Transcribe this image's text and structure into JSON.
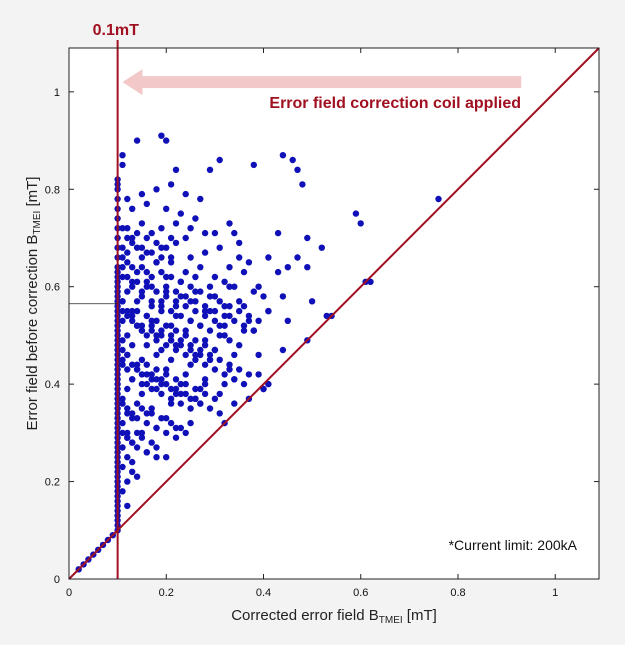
{
  "chart_data": {
    "type": "scatter",
    "title": "",
    "xlabel": {
      "main": "Corrected error field  B",
      "sub": "TMEI",
      "unit": " [mT]"
    },
    "ylabel": {
      "main": "Error field before correction  B",
      "sub": "TMEI",
      "unit": " [mT]"
    },
    "xlim": [
      0,
      1.09
    ],
    "ylim": [
      0,
      1.09
    ],
    "x_ticks": [
      0,
      0.2,
      0.4,
      0.6,
      0.8,
      1
    ],
    "y_ticks": [
      0,
      0.2,
      0.4,
      0.6,
      0.8,
      1
    ],
    "x_tick_labels": [
      "0",
      "0.2",
      "0.4",
      "0.6",
      "0.8",
      "1"
    ],
    "y_tick_labels": [
      "0",
      "0.2",
      "0.4",
      "0.6",
      "0.8",
      "1"
    ],
    "grid": false,
    "colors": {
      "points": "#1010b8",
      "annotation": "#a01020",
      "arrow": "#f2c8c8",
      "frame": "#222222"
    },
    "reference_lines": [
      {
        "type": "diagonal",
        "label": "y = x"
      },
      {
        "type": "vertical",
        "x": 0.1,
        "label": "0.1mT"
      },
      {
        "type": "horizontal_marker",
        "y": 0.565
      }
    ],
    "annotations": {
      "threshold_label": "0.1mT",
      "arrow_label": "Error field correction coil applied",
      "arrow_from_x": 0.93,
      "arrow_to_x": 0.11,
      "arrow_y": 1.02,
      "note": "*Current limit: 200kA"
    },
    "series": [
      {
        "marker": "circle",
        "x": [
          0.02,
          0.03,
          0.04,
          0.05,
          0.06,
          0.07,
          0.08,
          0.09,
          0.1,
          0.1,
          0.1,
          0.1,
          0.1,
          0.1,
          0.1,
          0.1,
          0.1,
          0.1,
          0.1,
          0.1,
          0.1,
          0.1,
          0.1,
          0.1,
          0.1,
          0.1,
          0.1,
          0.1,
          0.1,
          0.1,
          0.1,
          0.1,
          0.1,
          0.1,
          0.1,
          0.1,
          0.1,
          0.1,
          0.1,
          0.1,
          0.1,
          0.1,
          0.1,
          0.1,
          0.1,
          0.1,
          0.1,
          0.1,
          0.1,
          0.1,
          0.1,
          0.1,
          0.1,
          0.1,
          0.1,
          0.1,
          0.1,
          0.1,
          0.1,
          0.1,
          0.1,
          0.1,
          0.1,
          0.1,
          0.1,
          0.1,
          0.1,
          0.1,
          0.1,
          0.1,
          0.1,
          0.1,
          0.14,
          0.19,
          0.2,
          0.11,
          0.11,
          0.1,
          0.22,
          0.29,
          0.31,
          0.38,
          0.44,
          0.46,
          0.47,
          0.48,
          0.76,
          0.59,
          0.6,
          0.12,
          0.15,
          0.18,
          0.21,
          0.24,
          0.27,
          0.13,
          0.16,
          0.2,
          0.23,
          0.26,
          0.12,
          0.15,
          0.19,
          0.22,
          0.25,
          0.28,
          0.33,
          0.13,
          0.17,
          0.21,
          0.24,
          0.3,
          0.34,
          0.43,
          0.49,
          0.52,
          0.11,
          0.14,
          0.16,
          0.19,
          0.22,
          0.25,
          0.28,
          0.31,
          0.35,
          0.12,
          0.15,
          0.18,
          0.21,
          0.24,
          0.27,
          0.3,
          0.33,
          0.37,
          0.41,
          0.47,
          0.11,
          0.13,
          0.16,
          0.2,
          0.23,
          0.26,
          0.29,
          0.32,
          0.36,
          0.39,
          0.45,
          0.49,
          0.12,
          0.15,
          0.17,
          0.2,
          0.23,
          0.26,
          0.3,
          0.34,
          0.38,
          0.44,
          0.11,
          0.14,
          0.17,
          0.19,
          0.22,
          0.25,
          0.28,
          0.32,
          0.35,
          0.4,
          0.13,
          0.16,
          0.19,
          0.22,
          0.25,
          0.29,
          0.33,
          0.36,
          0.41,
          0.11,
          0.14,
          0.17,
          0.21,
          0.24,
          0.27,
          0.31,
          0.37,
          0.12,
          0.15,
          0.18,
          0.21,
          0.24,
          0.28,
          0.32,
          0.38,
          0.53,
          0.62,
          0.11,
          0.13,
          0.16,
          0.19,
          0.22,
          0.26,
          0.3,
          0.35,
          0.12,
          0.15,
          0.18,
          0.21,
          0.25,
          0.29,
          0.34,
          0.39,
          0.41,
          0.11,
          0.14,
          0.17,
          0.2,
          0.24,
          0.28,
          0.33,
          0.13,
          0.16,
          0.19,
          0.23,
          0.27,
          0.32,
          0.12,
          0.15,
          0.18,
          0.22,
          0.26,
          0.31,
          0.34,
          0.4,
          0.11,
          0.14,
          0.17,
          0.21,
          0.12,
          0.16,
          0.2,
          0.25,
          0.13,
          0.18,
          0.11,
          0.15,
          0.12,
          0.14,
          0.11,
          0.13,
          0.12,
          0.16,
          0.11,
          0.13,
          0.12,
          0.14,
          0.11,
          0.12,
          0.13,
          0.12,
          0.11,
          0.12,
          0.13,
          0.14,
          0.15,
          0.16,
          0.17,
          0.18,
          0.19,
          0.2,
          0.21,
          0.22,
          0.23,
          0.24,
          0.25,
          0.26,
          0.27,
          0.28,
          0.29,
          0.3,
          0.31,
          0.32,
          0.33,
          0.34,
          0.35,
          0.36,
          0.37,
          0.38,
          0.39,
          0.11,
          0.12,
          0.13,
          0.14,
          0.15,
          0.16,
          0.17,
          0.18,
          0.19,
          0.2,
          0.21,
          0.22,
          0.23,
          0.24,
          0.25,
          0.26,
          0.27,
          0.28,
          0.29,
          0.3,
          0.31,
          0.32,
          0.33,
          0.34,
          0.35,
          0.36,
          0.37,
          0.11,
          0.12,
          0.13,
          0.14,
          0.15,
          0.16,
          0.17,
          0.18,
          0.19,
          0.2,
          0.21,
          0.22,
          0.23,
          0.24,
          0.25,
          0.26,
          0.27,
          0.28,
          0.29,
          0.3,
          0.31,
          0.11,
          0.12,
          0.13,
          0.14,
          0.15,
          0.16,
          0.17,
          0.18,
          0.19,
          0.2,
          0.21,
          0.22,
          0.23,
          0.24,
          0.25,
          0.26,
          0.27,
          0.28,
          0.29,
          0.3,
          0.31,
          0.32,
          0.33,
          0.11,
          0.12,
          0.13,
          0.14,
          0.15,
          0.16,
          0.17,
          0.18,
          0.19,
          0.2,
          0.21,
          0.22,
          0.23,
          0.24,
          0.25,
          0.26,
          0.27,
          0.11,
          0.12,
          0.13,
          0.14,
          0.15,
          0.16,
          0.17,
          0.18,
          0.19,
          0.2,
          0.21,
          0.22,
          0.23,
          0.24,
          0.11,
          0.12,
          0.13,
          0.14,
          0.15,
          0.16,
          0.17,
          0.18,
          0.19,
          0.2,
          0.21,
          0.11,
          0.12,
          0.13,
          0.14,
          0.15,
          0.16,
          0.17,
          0.18,
          0.11,
          0.12,
          0.13,
          0.14,
          0.15,
          0.16,
          0.17,
          0.18,
          0.19,
          0.2,
          0.21,
          0.22,
          0.23,
          0.24,
          0.25,
          0.26,
          0.27,
          0.28,
          0.29,
          0.3
        ],
        "y": [
          0.02,
          0.03,
          0.04,
          0.05,
          0.06,
          0.07,
          0.08,
          0.09,
          0.1,
          0.12,
          0.14,
          0.16,
          0.18,
          0.2,
          0.22,
          0.24,
          0.26,
          0.28,
          0.3,
          0.32,
          0.34,
          0.36,
          0.38,
          0.4,
          0.42,
          0.44,
          0.46,
          0.48,
          0.5,
          0.52,
          0.54,
          0.56,
          0.58,
          0.6,
          0.62,
          0.64,
          0.66,
          0.68,
          0.7,
          0.72,
          0.74,
          0.76,
          0.78,
          0.8,
          0.81,
          0.11,
          0.13,
          0.15,
          0.17,
          0.19,
          0.21,
          0.23,
          0.25,
          0.27,
          0.29,
          0.31,
          0.33,
          0.35,
          0.37,
          0.39,
          0.41,
          0.43,
          0.45,
          0.47,
          0.49,
          0.51,
          0.53,
          0.55,
          0.57,
          0.59,
          0.61,
          0.63,
          0.9,
          0.91,
          0.9,
          0.87,
          0.85,
          0.82,
          0.84,
          0.84,
          0.86,
          0.85,
          0.87,
          0.86,
          0.84,
          0.81,
          0.78,
          0.75,
          0.73,
          0.78,
          0.79,
          0.8,
          0.81,
          0.79,
          0.78,
          0.76,
          0.77,
          0.76,
          0.75,
          0.74,
          0.72,
          0.73,
          0.72,
          0.73,
          0.72,
          0.71,
          0.73,
          0.7,
          0.71,
          0.7,
          0.7,
          0.71,
          0.71,
          0.71,
          0.7,
          0.68,
          0.68,
          0.68,
          0.67,
          0.68,
          0.69,
          0.66,
          0.67,
          0.68,
          0.69,
          0.65,
          0.64,
          0.65,
          0.66,
          0.63,
          0.64,
          0.62,
          0.64,
          0.65,
          0.66,
          0.66,
          0.62,
          0.61,
          0.61,
          0.62,
          0.61,
          0.62,
          0.6,
          0.61,
          0.63,
          0.6,
          0.64,
          0.64,
          0.59,
          0.59,
          0.6,
          0.59,
          0.58,
          0.59,
          0.58,
          0.6,
          0.59,
          0.58,
          0.57,
          0.57,
          0.56,
          0.57,
          0.56,
          0.57,
          0.55,
          0.56,
          0.57,
          0.58,
          0.55,
          0.54,
          0.55,
          0.54,
          0.53,
          0.55,
          0.54,
          0.56,
          0.55,
          0.53,
          0.52,
          0.53,
          0.52,
          0.51,
          0.52,
          0.52,
          0.53,
          0.5,
          0.51,
          0.5,
          0.49,
          0.5,
          0.49,
          0.5,
          0.51,
          0.54,
          0.61,
          0.49,
          0.48,
          0.48,
          0.47,
          0.48,
          0.46,
          0.47,
          0.48,
          0.46,
          0.45,
          0.46,
          0.45,
          0.44,
          0.45,
          0.46,
          0.42,
          0.4,
          0.44,
          0.43,
          0.42,
          0.43,
          0.42,
          0.41,
          0.43,
          0.41,
          0.4,
          0.41,
          0.4,
          0.39,
          0.4,
          0.39,
          0.38,
          0.39,
          0.38,
          0.37,
          0.38,
          0.36,
          0.39,
          0.37,
          0.36,
          0.35,
          0.36,
          0.34,
          0.34,
          0.33,
          0.32,
          0.33,
          0.31,
          0.32,
          0.3,
          0.29,
          0.3,
          0.27,
          0.28,
          0.25,
          0.26,
          0.23,
          0.24,
          0.2,
          0.21,
          0.18,
          0.15,
          0.22,
          0.3,
          0.66,
          0.67,
          0.64,
          0.63,
          0.66,
          0.63,
          0.62,
          0.65,
          0.63,
          0.6,
          0.62,
          0.59,
          0.61,
          0.58,
          0.6,
          0.57,
          0.59,
          0.56,
          0.58,
          0.55,
          0.57,
          0.54,
          0.56,
          0.53,
          0.55,
          0.52,
          0.54,
          0.51,
          0.53,
          0.57,
          0.55,
          0.54,
          0.52,
          0.51,
          0.5,
          0.52,
          0.49,
          0.51,
          0.48,
          0.5,
          0.47,
          0.49,
          0.46,
          0.48,
          0.45,
          0.47,
          0.44,
          0.46,
          0.43,
          0.45,
          0.42,
          0.44,
          0.41,
          0.43,
          0.4,
          0.42,
          0.47,
          0.46,
          0.44,
          0.43,
          0.42,
          0.44,
          0.41,
          0.43,
          0.4,
          0.42,
          0.39,
          0.41,
          0.38,
          0.4,
          0.37,
          0.39,
          0.36,
          0.38,
          0.35,
          0.37,
          0.34,
          0.64,
          0.62,
          0.6,
          0.61,
          0.58,
          0.6,
          0.57,
          0.59,
          0.56,
          0.58,
          0.55,
          0.57,
          0.54,
          0.56,
          0.53,
          0.55,
          0.52,
          0.54,
          0.51,
          0.53,
          0.5,
          0.52,
          0.49,
          0.45,
          0.43,
          0.41,
          0.44,
          0.4,
          0.42,
          0.39,
          0.41,
          0.38,
          0.4,
          0.37,
          0.39,
          0.36,
          0.38,
          0.35,
          0.37,
          0.36,
          0.36,
          0.35,
          0.34,
          0.33,
          0.35,
          0.32,
          0.34,
          0.31,
          0.33,
          0.3,
          0.32,
          0.29,
          0.31,
          0.3,
          0.72,
          0.7,
          0.69,
          0.71,
          0.68,
          0.7,
          0.67,
          0.69,
          0.66,
          0.68,
          0.65,
          0.3,
          0.29,
          0.28,
          0.27,
          0.29,
          0.26,
          0.28,
          0.25,
          0.55,
          0.54,
          0.53,
          0.55,
          0.52,
          0.54,
          0.51,
          0.53,
          0.5,
          0.52,
          0.49,
          0.51,
          0.48,
          0.5,
          0.47,
          0.49,
          0.46,
          0.48,
          0.45,
          0.47
        ]
      }
    ],
    "extra_points": {
      "x": [
        0.32,
        0.37,
        0.4,
        0.49,
        0.54,
        0.61,
        0.44,
        0.34,
        0.28,
        0.36,
        0.41,
        0.18,
        0.2,
        0.22,
        0.39,
        0.45,
        0.43,
        0.5,
        0.35,
        0.33
      ],
      "y": [
        0.32,
        0.37,
        0.39,
        0.49,
        0.54,
        0.61,
        0.47,
        0.41,
        0.4,
        0.51,
        0.55,
        0.27,
        0.25,
        0.31,
        0.46,
        0.53,
        0.63,
        0.57,
        0.66,
        0.6
      ]
    }
  }
}
